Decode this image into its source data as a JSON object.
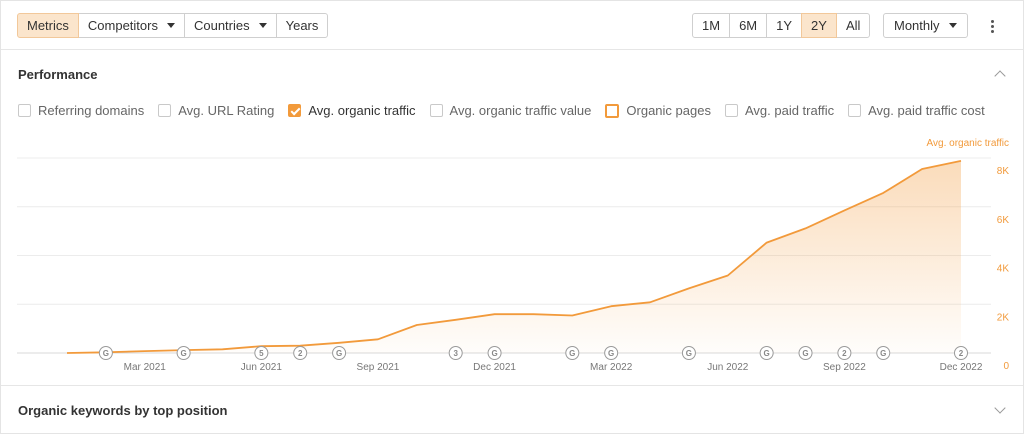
{
  "toolbar": {
    "tabs": [
      {
        "label": "Metrics",
        "active": true
      },
      {
        "label": "Competitors",
        "dropdown": true
      },
      {
        "label": "Countries",
        "dropdown": true
      },
      {
        "label": "Years"
      }
    ],
    "ranges": [
      {
        "label": "1M"
      },
      {
        "label": "6M"
      },
      {
        "label": "1Y"
      },
      {
        "label": "2Y",
        "active": true
      },
      {
        "label": "All"
      }
    ],
    "interval": "Monthly",
    "more_icon": "kebab-icon"
  },
  "performance": {
    "title": "Performance",
    "collapse_icon": "chevron-up-icon",
    "metrics": [
      {
        "label": "Referring domains",
        "checked": false
      },
      {
        "label": "Avg. URL Rating",
        "checked": false
      },
      {
        "label": "Avg. organic traffic",
        "checked": true
      },
      {
        "label": "Avg. organic traffic value",
        "checked": false
      },
      {
        "label": "Organic pages",
        "checked": false,
        "hover": true
      },
      {
        "label": "Avg. paid traffic",
        "checked": false
      },
      {
        "label": "Avg. paid traffic cost",
        "checked": false
      }
    ]
  },
  "organic_keywords": {
    "title": "Organic keywords by top position",
    "expand_icon": "chevron-down-icon"
  },
  "chart_data": {
    "type": "area",
    "series": [
      {
        "name": "Avg. organic traffic",
        "color": "#f29a3b",
        "x": [
          "2021-01",
          "2021-02",
          "2021-03",
          "2021-04",
          "2021-05",
          "2021-06",
          "2021-07",
          "2021-08",
          "2021-09",
          "2021-10",
          "2021-11",
          "2021-12",
          "2022-01",
          "2022-02",
          "2022-03",
          "2022-04",
          "2022-05",
          "2022-06",
          "2022-07",
          "2022-08",
          "2022-09",
          "2022-10",
          "2022-11",
          "2022-12"
        ],
        "values": [
          0,
          30,
          80,
          120,
          150,
          280,
          300,
          420,
          560,
          1150,
          1360,
          1590,
          1590,
          1540,
          1920,
          2080,
          2650,
          3180,
          4530,
          5110,
          5850,
          6570,
          7550,
          7880
        ]
      }
    ],
    "y_ticks": [
      "0",
      "2K",
      "4K",
      "6K",
      "8K"
    ],
    "ylim": [
      0,
      8000
    ],
    "x_ticks": [
      {
        "label": "Mar 2021",
        "x": "2021-03"
      },
      {
        "label": "Jun 2021",
        "x": "2021-06"
      },
      {
        "label": "Sep 2021",
        "x": "2021-09"
      },
      {
        "label": "Dec 2021",
        "x": "2021-12"
      },
      {
        "label": "Mar 2022",
        "x": "2022-03"
      },
      {
        "label": "Jun 2022",
        "x": "2022-06"
      },
      {
        "label": "Sep 2022",
        "x": "2022-09"
      },
      {
        "label": "Dec 2022",
        "x": "2022-12"
      }
    ],
    "annotations": [
      {
        "label": "G",
        "x": "2021-02"
      },
      {
        "label": "G",
        "x": "2021-04"
      },
      {
        "label": "5",
        "x": "2021-06"
      },
      {
        "label": "2",
        "x": "2021-07"
      },
      {
        "label": "G",
        "x": "2021-08"
      },
      {
        "label": "3",
        "x": "2021-11"
      },
      {
        "label": "G",
        "x": "2021-12"
      },
      {
        "label": "G",
        "x": "2022-02"
      },
      {
        "label": "G",
        "x": "2022-03"
      },
      {
        "label": "G",
        "x": "2022-05"
      },
      {
        "label": "G",
        "x": "2022-07"
      },
      {
        "label": "G",
        "x": "2022-08"
      },
      {
        "label": "2",
        "x": "2022-09"
      },
      {
        "label": "G",
        "x": "2022-10"
      },
      {
        "label": "2",
        "x": "2022-12"
      }
    ],
    "grid": true,
    "y_axis_side": "right"
  }
}
